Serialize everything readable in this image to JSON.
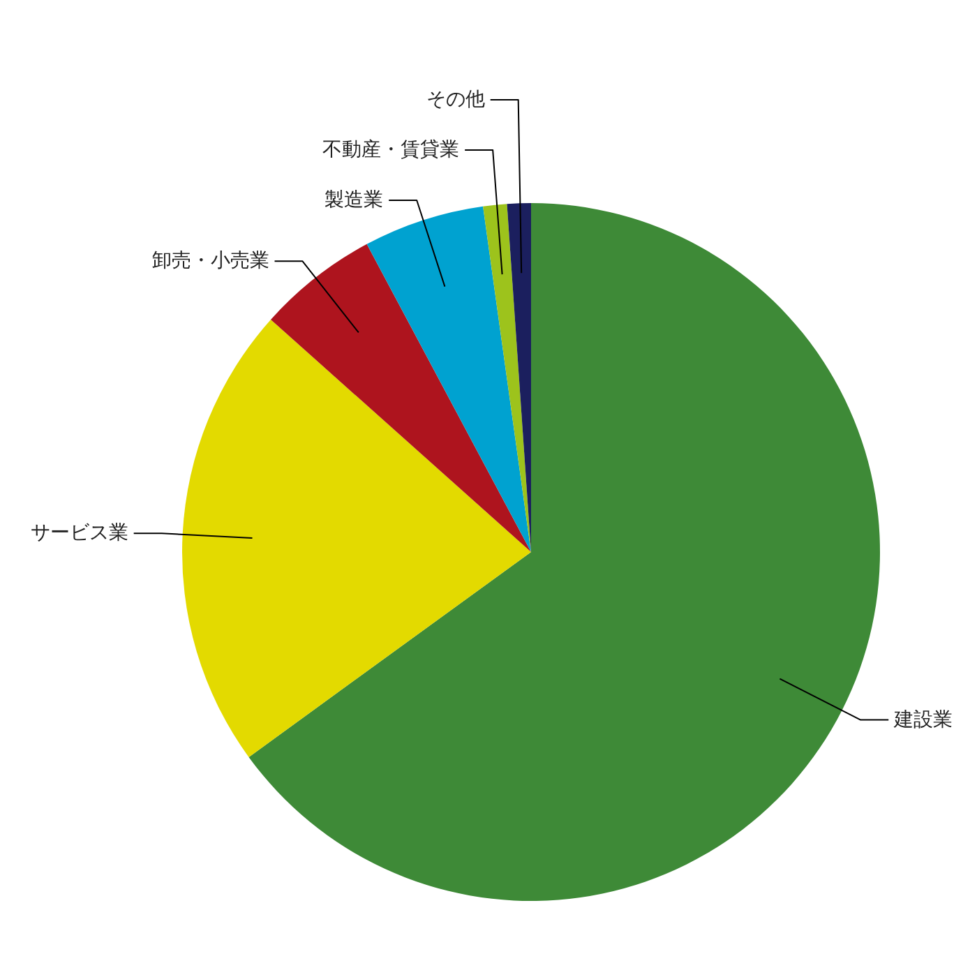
{
  "chart_data": {
    "type": "pie",
    "categories": [
      "建設業",
      "サービス業",
      "卸売・小売業",
      "製造業",
      "不動産・賃貸業",
      "その他"
    ],
    "values": [
      65.0,
      21.6,
      5.6,
      5.6,
      1.1,
      1.1
    ],
    "colors": [
      "#3e8a37",
      "#e3da00",
      "#ae141e",
      "#00a2d0",
      "#9dc31c",
      "#1b1f5e"
    ]
  }
}
